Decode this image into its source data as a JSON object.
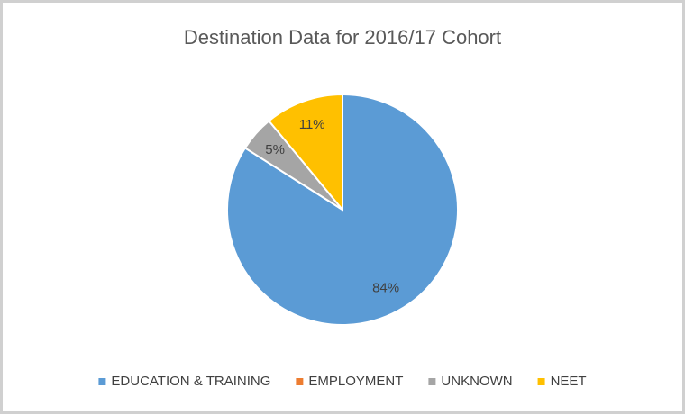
{
  "chart_data": {
    "type": "pie",
    "title": "Destination Data for 2016/17 Cohort",
    "categories": [
      "EDUCATION & TRAINING",
      "EMPLOYMENT",
      "UNKNOWN",
      "NEET"
    ],
    "values": [
      84,
      0,
      5,
      11
    ],
    "value_labels": [
      "84%",
      null,
      "5%",
      "11%"
    ],
    "colors": [
      "#5b9bd5",
      "#ed7d31",
      "#a5a5a5",
      "#ffc000"
    ],
    "legend": "bottom"
  }
}
